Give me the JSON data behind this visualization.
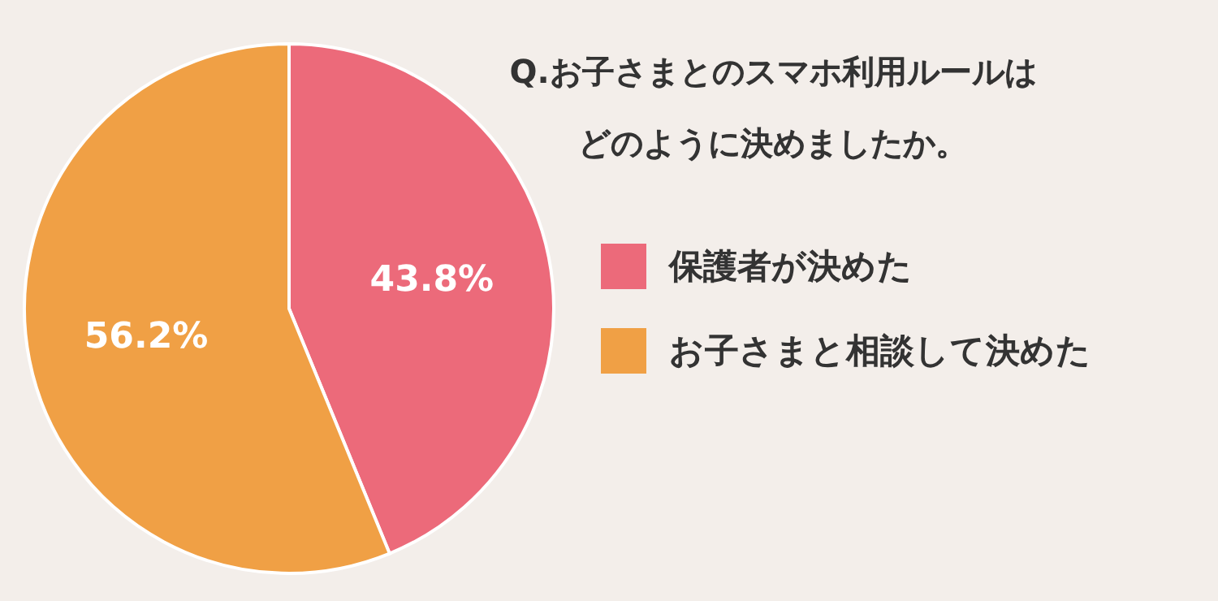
{
  "chart_data": {
    "type": "pie",
    "title": "Q.お子さまとのスマホ利用ルールはどのように決めましたか。",
    "categories": [
      "保護者が決めた",
      "お子さまと相談して決めた"
    ],
    "values": [
      43.8,
      56.2
    ],
    "colors": [
      "#ec6a7a",
      "#f0a045"
    ],
    "value_labels": [
      "43.8%",
      "56.2%"
    ],
    "legend": "right"
  }
}
